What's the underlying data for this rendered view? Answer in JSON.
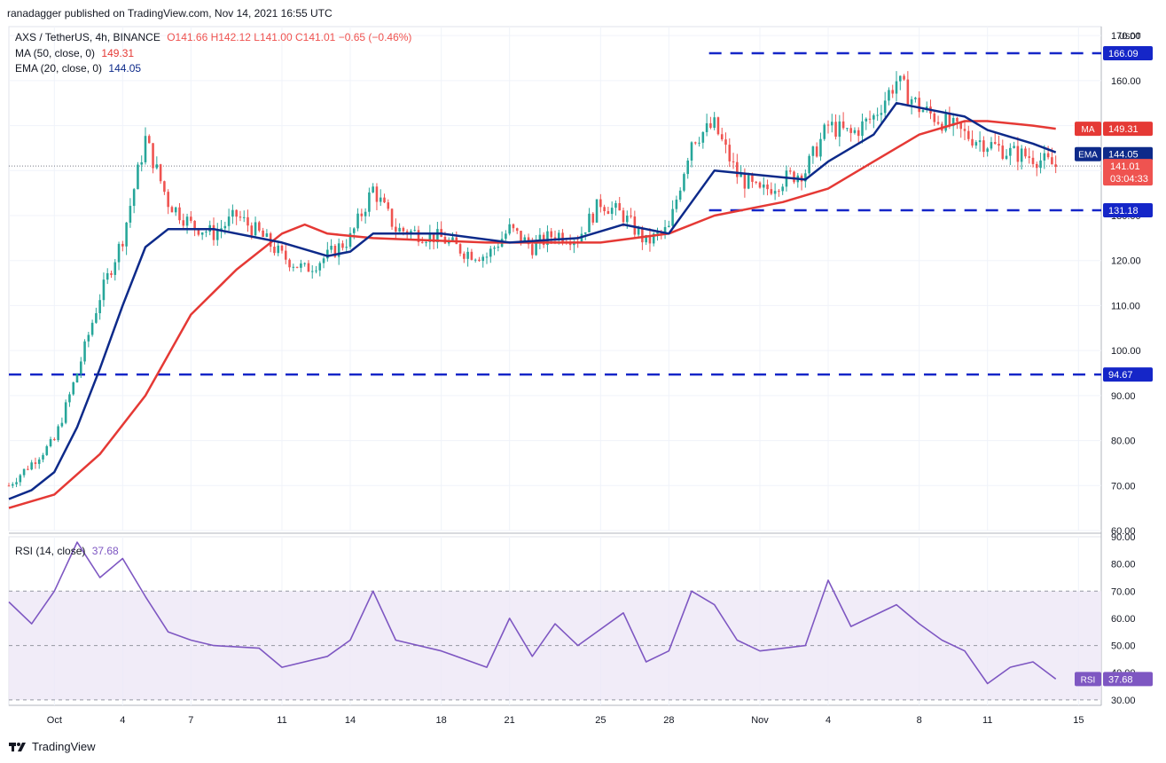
{
  "header": {
    "published": "ranadagger published on TradingView.com, Nov 14, 2021 16:55 UTC"
  },
  "legend": {
    "symbol": "AXS / TetherUS, 4h, BINANCE",
    "ohlc": "O141.66  H142.12  L141.00  C141.01  −0.65 (−0.46%)",
    "ma_label": "MA (50, close, 0)",
    "ma_value": "149.31",
    "ema_label": "EMA (20, close, 0)",
    "ema_value": "144.05",
    "rsi_label": "RSI (14, close)",
    "rsi_value": "37.68"
  },
  "price_scale": {
    "currency": "USDT",
    "ticks": [
      "60.00",
      "70.00",
      "80.00",
      "90.00",
      "100.00",
      "110.00",
      "120.00",
      "130.00",
      "140.00",
      "150.00",
      "160.00",
      "170.00"
    ],
    "badges": {
      "ma": {
        "tag": "MA",
        "value": "149.31"
      },
      "ema": {
        "tag": "EMA",
        "value": "144.05"
      },
      "last": {
        "value": "141.01",
        "countdown": "03:04:33"
      },
      "level_high": "166.09",
      "level_mid": "131.18",
      "level_low": "94.67"
    }
  },
  "rsi_scale": {
    "ticks": [
      "30.00",
      "40.00",
      "50.00",
      "60.00",
      "70.00",
      "80.00",
      "90.00"
    ],
    "badge": {
      "tag": "RSI",
      "value": "37.68"
    }
  },
  "time_axis": {
    "labels": [
      "Oct",
      "4",
      "7",
      "11",
      "14",
      "18",
      "21",
      "25",
      "28",
      "Nov",
      "4",
      "8",
      "11",
      "15"
    ]
  },
  "branding": {
    "name": "TradingView"
  },
  "colors": {
    "up": "#26a69a",
    "down": "#ef5350",
    "ma": "#e53935",
    "ema": "#0d2a8a",
    "level": "#1526c8",
    "rsi": "#7e57c2",
    "rsi_band": "#ede7f6"
  },
  "chart_data": [
    {
      "type": "candlestick",
      "title": "AXS / TetherUS, 4h, BINANCE",
      "x_range": [
        "2021-09-29",
        "2021-11-16"
      ],
      "ylim": [
        60,
        172
      ],
      "x_ticks": [
        {
          "date": "2021-10-01",
          "label": "Oct"
        },
        {
          "date": "2021-10-04",
          "label": "4"
        },
        {
          "date": "2021-10-07",
          "label": "7"
        },
        {
          "date": "2021-10-11",
          "label": "11"
        },
        {
          "date": "2021-10-14",
          "label": "14"
        },
        {
          "date": "2021-10-18",
          "label": "18"
        },
        {
          "date": "2021-10-21",
          "label": "21"
        },
        {
          "date": "2021-10-25",
          "label": "25"
        },
        {
          "date": "2021-10-28",
          "label": "28"
        },
        {
          "date": "2021-11-01",
          "label": "Nov"
        },
        {
          "date": "2021-11-04",
          "label": "4"
        },
        {
          "date": "2021-11-08",
          "label": "8"
        },
        {
          "date": "2021-11-11",
          "label": "11"
        },
        {
          "date": "2021-11-15",
          "label": "15"
        }
      ],
      "close": [
        {
          "date": "2021-09-29",
          "value": 70
        },
        {
          "date": "2021-09-30",
          "value": 75
        },
        {
          "date": "2021-10-01",
          "value": 80
        },
        {
          "date": "2021-10-02",
          "value": 95
        },
        {
          "date": "2021-10-03",
          "value": 112
        },
        {
          "date": "2021-10-04",
          "value": 125
        },
        {
          "date": "2021-10-05",
          "value": 147
        },
        {
          "date": "2021-10-06",
          "value": 133
        },
        {
          "date": "2021-10-07",
          "value": 128
        },
        {
          "date": "2021-10-08",
          "value": 126
        },
        {
          "date": "2021-10-09",
          "value": 130
        },
        {
          "date": "2021-10-10",
          "value": 126
        },
        {
          "date": "2021-10-11",
          "value": 121
        },
        {
          "date": "2021-10-12",
          "value": 118
        },
        {
          "date": "2021-10-13",
          "value": 121
        },
        {
          "date": "2021-10-14",
          "value": 125
        },
        {
          "date": "2021-10-15",
          "value": 136
        },
        {
          "date": "2021-10-16",
          "value": 127
        },
        {
          "date": "2021-10-17",
          "value": 126
        },
        {
          "date": "2021-10-18",
          "value": 125
        },
        {
          "date": "2021-10-19",
          "value": 122
        },
        {
          "date": "2021-10-20",
          "value": 121
        },
        {
          "date": "2021-10-21",
          "value": 127
        },
        {
          "date": "2021-10-22",
          "value": 123
        },
        {
          "date": "2021-10-23",
          "value": 126
        },
        {
          "date": "2021-10-24",
          "value": 125
        },
        {
          "date": "2021-10-25",
          "value": 133
        },
        {
          "date": "2021-10-26",
          "value": 130
        },
        {
          "date": "2021-10-27",
          "value": 124
        },
        {
          "date": "2021-10-28",
          "value": 127
        },
        {
          "date": "2021-10-29",
          "value": 147
        },
        {
          "date": "2021-10-30",
          "value": 150
        },
        {
          "date": "2021-10-31",
          "value": 139
        },
        {
          "date": "2021-11-01",
          "value": 135
        },
        {
          "date": "2021-11-02",
          "value": 138
        },
        {
          "date": "2021-11-03",
          "value": 140
        },
        {
          "date": "2021-11-04",
          "value": 150
        },
        {
          "date": "2021-11-05",
          "value": 148
        },
        {
          "date": "2021-11-06",
          "value": 152
        },
        {
          "date": "2021-11-07",
          "value": 160
        },
        {
          "date": "2021-11-08",
          "value": 154
        },
        {
          "date": "2021-11-09",
          "value": 151
        },
        {
          "date": "2021-11-10",
          "value": 148
        },
        {
          "date": "2021-11-11",
          "value": 146
        },
        {
          "date": "2021-11-12",
          "value": 144
        },
        {
          "date": "2021-11-13",
          "value": 143
        },
        {
          "date": "2021-11-14",
          "value": 141.01
        }
      ],
      "ema20": [
        {
          "date": "2021-09-29",
          "value": 67
        },
        {
          "date": "2021-09-30",
          "value": 69
        },
        {
          "date": "2021-10-01",
          "value": 73
        },
        {
          "date": "2021-10-02",
          "value": 83
        },
        {
          "date": "2021-10-03",
          "value": 96
        },
        {
          "date": "2021-10-04",
          "value": 110
        },
        {
          "date": "2021-10-05",
          "value": 123
        },
        {
          "date": "2021-10-06",
          "value": 127
        },
        {
          "date": "2021-10-08",
          "value": 127
        },
        {
          "date": "2021-10-11",
          "value": 124
        },
        {
          "date": "2021-10-13",
          "value": 121
        },
        {
          "date": "2021-10-14",
          "value": 122
        },
        {
          "date": "2021-10-15",
          "value": 126
        },
        {
          "date": "2021-10-18",
          "value": 126
        },
        {
          "date": "2021-10-21",
          "value": 124
        },
        {
          "date": "2021-10-24",
          "value": 125
        },
        {
          "date": "2021-10-26",
          "value": 128
        },
        {
          "date": "2021-10-28",
          "value": 126
        },
        {
          "date": "2021-10-29",
          "value": 133
        },
        {
          "date": "2021-10-30",
          "value": 140
        },
        {
          "date": "2021-11-01",
          "value": 139
        },
        {
          "date": "2021-11-03",
          "value": 138
        },
        {
          "date": "2021-11-04",
          "value": 142
        },
        {
          "date": "2021-11-06",
          "value": 148
        },
        {
          "date": "2021-11-07",
          "value": 155
        },
        {
          "date": "2021-11-08",
          "value": 154
        },
        {
          "date": "2021-11-10",
          "value": 152
        },
        {
          "date": "2021-11-11",
          "value": 149
        },
        {
          "date": "2021-11-13",
          "value": 146
        },
        {
          "date": "2021-11-14",
          "value": 144.05
        }
      ],
      "ma50": [
        {
          "date": "2021-09-29",
          "value": 65
        },
        {
          "date": "2021-10-01",
          "value": 68
        },
        {
          "date": "2021-10-03",
          "value": 77
        },
        {
          "date": "2021-10-05",
          "value": 90
        },
        {
          "date": "2021-10-07",
          "value": 108
        },
        {
          "date": "2021-10-09",
          "value": 118
        },
        {
          "date": "2021-10-11",
          "value": 126
        },
        {
          "date": "2021-10-12",
          "value": 128
        },
        {
          "date": "2021-10-13",
          "value": 126
        },
        {
          "date": "2021-10-15",
          "value": 125
        },
        {
          "date": "2021-10-20",
          "value": 124
        },
        {
          "date": "2021-10-25",
          "value": 124
        },
        {
          "date": "2021-10-28",
          "value": 126
        },
        {
          "date": "2021-10-30",
          "value": 130
        },
        {
          "date": "2021-11-02",
          "value": 133
        },
        {
          "date": "2021-11-04",
          "value": 136
        },
        {
          "date": "2021-11-06",
          "value": 142
        },
        {
          "date": "2021-11-08",
          "value": 148
        },
        {
          "date": "2021-11-10",
          "value": 151
        },
        {
          "date": "2021-11-11",
          "value": 151
        },
        {
          "date": "2021-11-13",
          "value": 150
        },
        {
          "date": "2021-11-14",
          "value": 149.31
        }
      ],
      "horizontal_levels": [
        166.09,
        131.18,
        94.67
      ],
      "last_price": 141.01
    },
    {
      "type": "line",
      "title": "RSI (14, close)",
      "ylim": [
        28,
        90
      ],
      "band": [
        30,
        70
      ],
      "midline": 50,
      "series": [
        {
          "date": "2021-09-29",
          "value": 66
        },
        {
          "date": "2021-09-30",
          "value": 58
        },
        {
          "date": "2021-10-01",
          "value": 70
        },
        {
          "date": "2021-10-02",
          "value": 88
        },
        {
          "date": "2021-10-03",
          "value": 75
        },
        {
          "date": "2021-10-04",
          "value": 82
        },
        {
          "date": "2021-10-05",
          "value": 68
        },
        {
          "date": "2021-10-06",
          "value": 55
        },
        {
          "date": "2021-10-07",
          "value": 52
        },
        {
          "date": "2021-10-08",
          "value": 50
        },
        {
          "date": "2021-10-10",
          "value": 49
        },
        {
          "date": "2021-10-11",
          "value": 42
        },
        {
          "date": "2021-10-13",
          "value": 46
        },
        {
          "date": "2021-10-14",
          "value": 52
        },
        {
          "date": "2021-10-15",
          "value": 70
        },
        {
          "date": "2021-10-16",
          "value": 52
        },
        {
          "date": "2021-10-18",
          "value": 48
        },
        {
          "date": "2021-10-20",
          "value": 42
        },
        {
          "date": "2021-10-21",
          "value": 60
        },
        {
          "date": "2021-10-22",
          "value": 46
        },
        {
          "date": "2021-10-23",
          "value": 58
        },
        {
          "date": "2021-10-24",
          "value": 50
        },
        {
          "date": "2021-10-26",
          "value": 62
        },
        {
          "date": "2021-10-27",
          "value": 44
        },
        {
          "date": "2021-10-28",
          "value": 48
        },
        {
          "date": "2021-10-29",
          "value": 70
        },
        {
          "date": "2021-10-30",
          "value": 65
        },
        {
          "date": "2021-10-31",
          "value": 52
        },
        {
          "date": "2021-11-01",
          "value": 48
        },
        {
          "date": "2021-11-03",
          "value": 50
        },
        {
          "date": "2021-11-04",
          "value": 74
        },
        {
          "date": "2021-11-05",
          "value": 57
        },
        {
          "date": "2021-11-07",
          "value": 65
        },
        {
          "date": "2021-11-08",
          "value": 58
        },
        {
          "date": "2021-11-09",
          "value": 52
        },
        {
          "date": "2021-11-10",
          "value": 48
        },
        {
          "date": "2021-11-11",
          "value": 36
        },
        {
          "date": "2021-11-12",
          "value": 42
        },
        {
          "date": "2021-11-13",
          "value": 44
        },
        {
          "date": "2021-11-14",
          "value": 37.68
        }
      ]
    }
  ]
}
